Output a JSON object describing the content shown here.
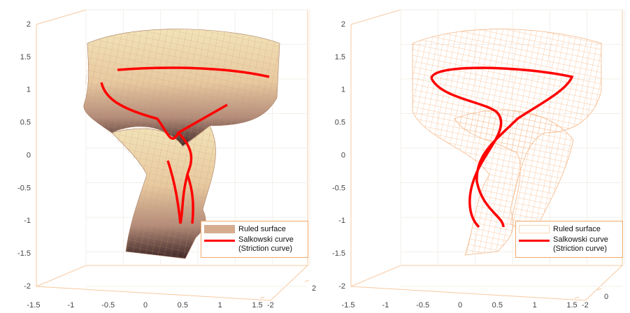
{
  "chart_data": [
    {
      "type": "surface3d",
      "style": "filled",
      "xlim": [
        -1.5,
        1.5
      ],
      "xticks": [
        -1.5,
        -1,
        -0.5,
        0,
        0.5,
        1,
        1.5
      ],
      "ylim": [
        -2,
        2
      ],
      "yticks": [
        -2,
        2
      ],
      "zlim": [
        -2,
        2
      ],
      "zticks": [
        -2,
        -1.5,
        -1,
        -0.5,
        0,
        0.5,
        1,
        1.5,
        2
      ],
      "series": [
        {
          "name": "Ruled surface",
          "color": "#d6ac8f"
        },
        {
          "name": "Salkowski curve (Striction curve)",
          "color": "#ff0000"
        }
      ]
    },
    {
      "type": "surface3d",
      "style": "wireframe",
      "xlim": [
        -1.5,
        1.5
      ],
      "xticks": [
        -1.5,
        -1,
        -0.5,
        0,
        0.5,
        1,
        1.5
      ],
      "ylim": [
        -2,
        2
      ],
      "yticks": [
        -2,
        0
      ],
      "zlim": [
        -2,
        2
      ],
      "zticks": [
        -2,
        -1.5,
        -1,
        -0.5,
        0,
        0.5,
        1,
        1.5,
        2
      ],
      "series": [
        {
          "name": "Ruled surface",
          "color": "#fcd8b4"
        },
        {
          "name": "Salkowski curve (Striction curve)",
          "color": "#ff0000"
        }
      ]
    }
  ]
}
